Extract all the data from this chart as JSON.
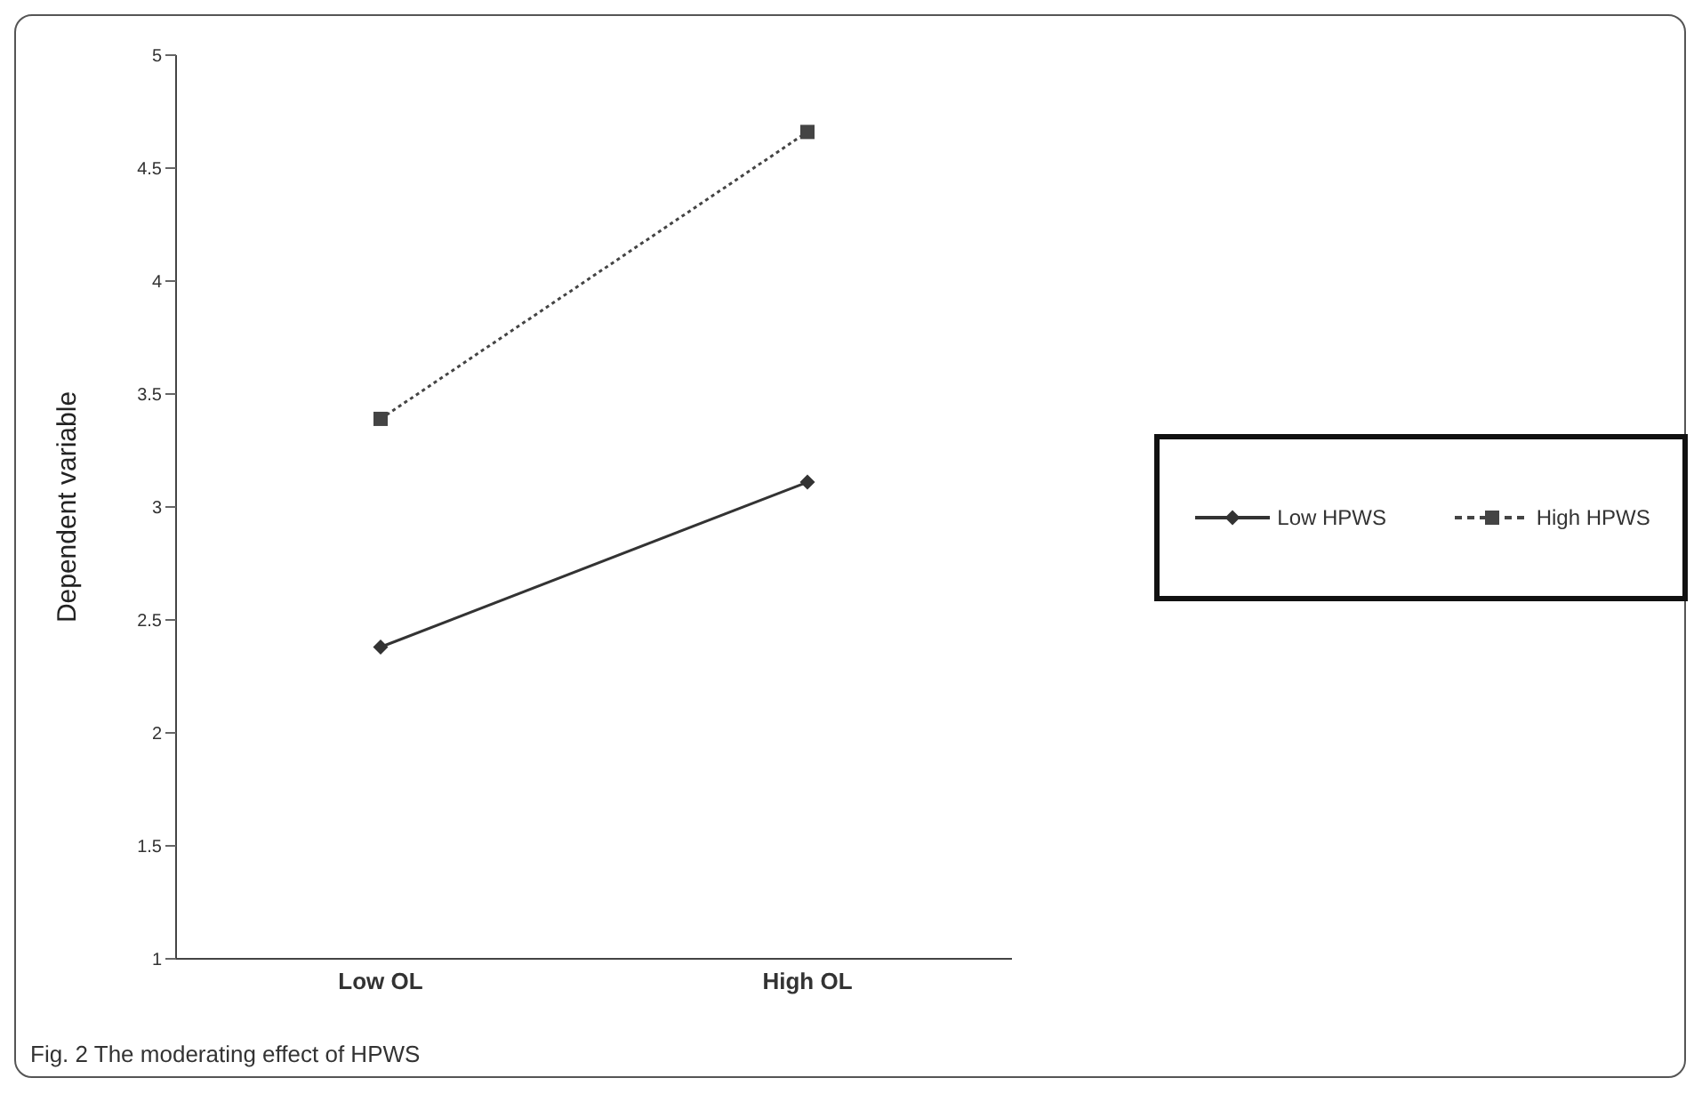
{
  "chart_data": {
    "type": "line",
    "ylabel": "Dependent variable",
    "categories": [
      "Low OL",
      "High OL"
    ],
    "series": [
      {
        "name": "Low HPWS",
        "color": "#333333",
        "values": [
          2.38,
          3.11
        ],
        "marker": "diamond",
        "line_style": "solid"
      },
      {
        "name": "High HPWS",
        "color": "#444444",
        "values": [
          3.39,
          4.66
        ],
        "marker": "square",
        "line_style": "dotted"
      }
    ],
    "ylim": [
      1,
      5
    ],
    "yticks": [
      1,
      1.5,
      2,
      2.5,
      3,
      3.5,
      4,
      4.5,
      5
    ],
    "grid": false,
    "legend": "right",
    "annotations": [
      "Fig. 2 The moderating effect of HPWS"
    ]
  }
}
